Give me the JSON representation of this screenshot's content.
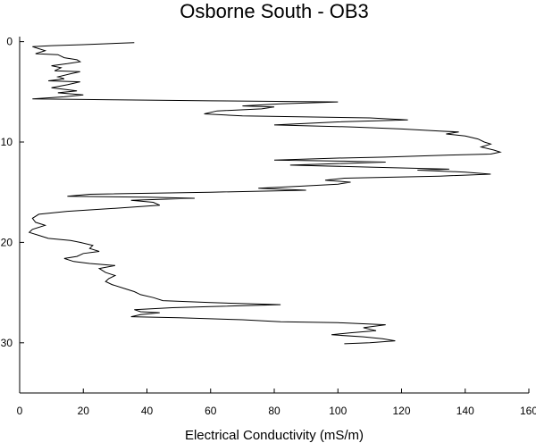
{
  "chart_data": {
    "type": "line",
    "title": "Osborne South - OB3",
    "xlabel": "Electrical Conductivity (mS/m)",
    "ylabel": "",
    "xlim": [
      0,
      160
    ],
    "ylim": [
      35,
      -0.5
    ],
    "x_ticks": [
      0,
      20,
      40,
      60,
      80,
      100,
      120,
      140,
      160
    ],
    "y_ticks": [
      0,
      10,
      20,
      30
    ],
    "grid": false,
    "series": [
      {
        "color": "#000000",
        "points": [
          [
            36,
            0.1
          ],
          [
            20,
            0.3
          ],
          [
            10,
            0.4
          ],
          [
            4,
            0.5
          ],
          [
            6,
            0.7
          ],
          [
            8,
            0.9
          ],
          [
            5,
            1.2
          ],
          [
            12,
            1.3
          ],
          [
            14,
            1.6
          ],
          [
            18,
            1.8
          ],
          [
            19,
            2.0
          ],
          [
            15,
            2.2
          ],
          [
            10,
            2.4
          ],
          [
            13,
            2.6
          ],
          [
            11,
            2.9
          ],
          [
            19,
            3.0
          ],
          [
            16,
            3.2
          ],
          [
            12,
            3.5
          ],
          [
            14,
            3.7
          ],
          [
            9,
            3.9
          ],
          [
            19,
            4.0
          ],
          [
            15,
            4.3
          ],
          [
            10,
            4.6
          ],
          [
            18,
            4.9
          ],
          [
            12,
            5.1
          ],
          [
            20,
            5.3
          ],
          [
            14,
            5.5
          ],
          [
            4,
            5.7
          ],
          [
            30,
            5.8
          ],
          [
            60,
            5.9
          ],
          [
            100,
            6.0
          ],
          [
            82,
            6.2
          ],
          [
            70,
            6.4
          ],
          [
            80,
            6.5
          ],
          [
            76,
            6.7
          ],
          [
            62,
            6.9
          ],
          [
            58,
            7.2
          ],
          [
            70,
            7.4
          ],
          [
            90,
            7.5
          ],
          [
            110,
            7.6
          ],
          [
            122,
            7.8
          ],
          [
            100,
            8.0
          ],
          [
            80,
            8.3
          ],
          [
            105,
            8.5
          ],
          [
            120,
            8.7
          ],
          [
            132,
            8.9
          ],
          [
            138,
            9.0
          ],
          [
            134,
            9.2
          ],
          [
            140,
            9.4
          ],
          [
            144,
            9.7
          ],
          [
            146,
            10.0
          ],
          [
            148,
            10.2
          ],
          [
            145,
            10.5
          ],
          [
            149,
            10.8
          ],
          [
            151,
            11.0
          ],
          [
            148,
            11.2
          ],
          [
            135,
            11.3
          ],
          [
            115,
            11.5
          ],
          [
            100,
            11.6
          ],
          [
            80,
            11.8
          ],
          [
            102,
            11.9
          ],
          [
            115,
            12.0
          ],
          [
            95,
            12.2
          ],
          [
            85,
            12.3
          ],
          [
            110,
            12.5
          ],
          [
            135,
            12.7
          ],
          [
            125,
            12.8
          ],
          [
            140,
            13.0
          ],
          [
            148,
            13.2
          ],
          [
            132,
            13.4
          ],
          [
            102,
            13.6
          ],
          [
            96,
            13.8
          ],
          [
            104,
            14.0
          ],
          [
            100,
            14.2
          ],
          [
            88,
            14.4
          ],
          [
            75,
            14.6
          ],
          [
            90,
            14.8
          ],
          [
            60,
            15.0
          ],
          [
            22,
            15.2
          ],
          [
            15,
            15.4
          ],
          [
            40,
            15.5
          ],
          [
            55,
            15.6
          ],
          [
            35,
            15.8
          ],
          [
            42,
            16.0
          ],
          [
            44,
            16.3
          ],
          [
            30,
            16.6
          ],
          [
            15,
            16.9
          ],
          [
            6,
            17.2
          ],
          [
            4,
            17.6
          ],
          [
            5,
            18.0
          ],
          [
            8,
            18.3
          ],
          [
            4,
            18.7
          ],
          [
            3,
            19.0
          ],
          [
            6,
            19.3
          ],
          [
            9,
            19.6
          ],
          [
            16,
            19.8
          ],
          [
            19,
            20.0
          ],
          [
            23,
            20.3
          ],
          [
            22,
            20.6
          ],
          [
            25,
            20.9
          ],
          [
            20,
            21.1
          ],
          [
            18,
            21.4
          ],
          [
            14,
            21.6
          ],
          [
            17,
            21.9
          ],
          [
            22,
            22.1
          ],
          [
            30,
            22.3
          ],
          [
            25,
            22.6
          ],
          [
            27,
            23.0
          ],
          [
            30,
            23.3
          ],
          [
            28,
            23.6
          ],
          [
            27,
            23.9
          ],
          [
            29,
            24.2
          ],
          [
            33,
            24.6
          ],
          [
            36,
            24.9
          ],
          [
            38,
            25.2
          ],
          [
            42,
            25.5
          ],
          [
            45,
            25.8
          ],
          [
            60,
            26.0
          ],
          [
            82,
            26.2
          ],
          [
            60,
            26.4
          ],
          [
            48,
            26.5
          ],
          [
            36,
            26.7
          ],
          [
            38,
            26.9
          ],
          [
            44,
            27.0
          ],
          [
            38,
            27.2
          ],
          [
            35,
            27.4
          ],
          [
            50,
            27.5
          ],
          [
            70,
            27.7
          ],
          [
            82,
            27.9
          ],
          [
            100,
            28.0
          ],
          [
            115,
            28.2
          ],
          [
            108,
            28.5
          ],
          [
            112,
            28.8
          ],
          [
            104,
            29.0
          ],
          [
            98,
            29.2
          ],
          [
            108,
            29.4
          ],
          [
            114,
            29.6
          ],
          [
            118,
            29.8
          ],
          [
            110,
            30.0
          ],
          [
            102,
            30.1
          ]
        ]
      }
    ]
  }
}
